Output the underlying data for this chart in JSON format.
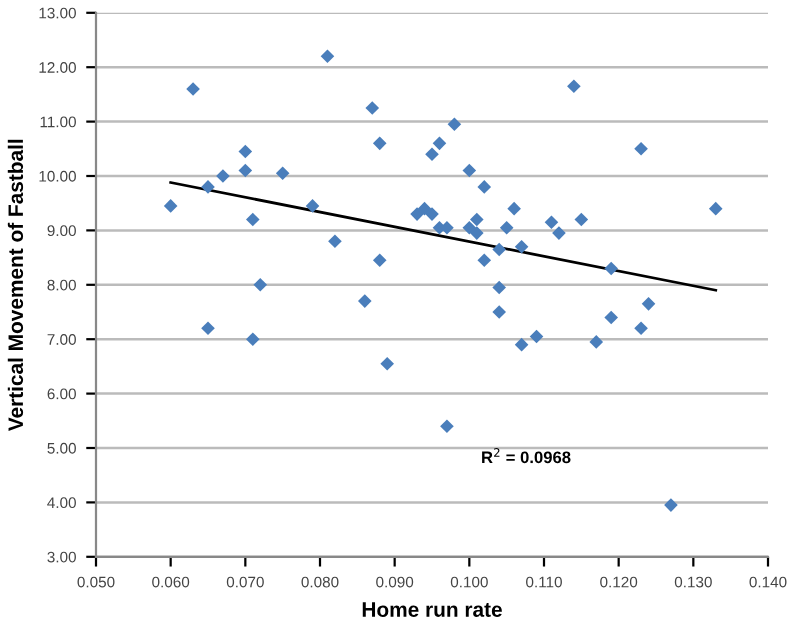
{
  "chart_data": {
    "type": "scatter",
    "xlabel": "Home run rate",
    "ylabel": "Vertical Movement of Fastball",
    "grid": "y",
    "xlim": [
      0.05,
      0.14
    ],
    "xticks": [
      {
        "value": 0.05,
        "label": "0.050"
      },
      {
        "value": 0.06,
        "label": "0.060"
      },
      {
        "value": 0.07,
        "label": "0.070"
      },
      {
        "value": 0.08,
        "label": "0.080"
      },
      {
        "value": 0.09,
        "label": "0.090"
      },
      {
        "value": 0.1,
        "label": "0.100"
      },
      {
        "value": 0.11,
        "label": "0.110"
      },
      {
        "value": 0.12,
        "label": "0.120"
      },
      {
        "value": 0.13,
        "label": "0.130"
      },
      {
        "value": 0.14,
        "label": "0.140"
      }
    ],
    "ylim": [
      3,
      13
    ],
    "yticks": [
      {
        "value": 3,
        "label": "3.00"
      },
      {
        "value": 4,
        "label": "4.00"
      },
      {
        "value": 5,
        "label": "5.00"
      },
      {
        "value": 6,
        "label": "6.00"
      },
      {
        "value": 7,
        "label": "7.00"
      },
      {
        "value": 8,
        "label": "8.00"
      },
      {
        "value": 9,
        "label": "9.00"
      },
      {
        "value": 10,
        "label": "10.00"
      },
      {
        "value": 11,
        "label": "11.00"
      },
      {
        "value": 12,
        "label": "12.00"
      },
      {
        "value": 13,
        "label": "13.00"
      }
    ],
    "annotations": [
      "R$^{2}$ = 0.0968"
    ],
    "series": [
      {
        "marker": "diamond",
        "color": "#4a7ebb",
        "x": [
          0.06,
          0.063,
          0.065,
          0.065,
          0.067,
          0.07,
          0.07,
          0.071,
          0.071,
          0.072,
          0.075,
          0.079,
          0.081,
          0.082,
          0.086,
          0.087,
          0.088,
          0.088,
          0.089,
          0.093,
          0.094,
          0.095,
          0.095,
          0.096,
          0.096,
          0.097,
          0.097,
          0.098,
          0.1,
          0.1,
          0.101,
          0.101,
          0.102,
          0.102,
          0.104,
          0.104,
          0.104,
          0.105,
          0.106,
          0.107,
          0.107,
          0.109,
          0.111,
          0.112,
          0.114,
          0.115,
          0.117,
          0.119,
          0.119,
          0.123,
          0.123,
          0.124,
          0.127,
          0.133
        ],
        "values": [
          9.45,
          11.6,
          9.8,
          7.2,
          10.0,
          10.45,
          10.1,
          9.2,
          7.0,
          8.0,
          10.05,
          9.45,
          12.2,
          8.8,
          7.7,
          11.25,
          10.6,
          8.45,
          6.55,
          9.3,
          9.4,
          10.4,
          9.3,
          10.6,
          9.05,
          9.05,
          5.4,
          10.95,
          10.1,
          9.05,
          9.2,
          8.95,
          9.8,
          8.45,
          8.65,
          7.95,
          7.5,
          9.05,
          9.4,
          8.7,
          6.9,
          7.05,
          9.15,
          8.95,
          11.65,
          9.2,
          6.95,
          8.3,
          7.4,
          10.5,
          7.2,
          7.65,
          3.95,
          9.4
        ]
      },
      {
        "type": "line",
        "color": "#000000",
        "x": [
          0.06,
          0.133
        ],
        "values": [
          9.88,
          7.9
        ]
      }
    ]
  }
}
